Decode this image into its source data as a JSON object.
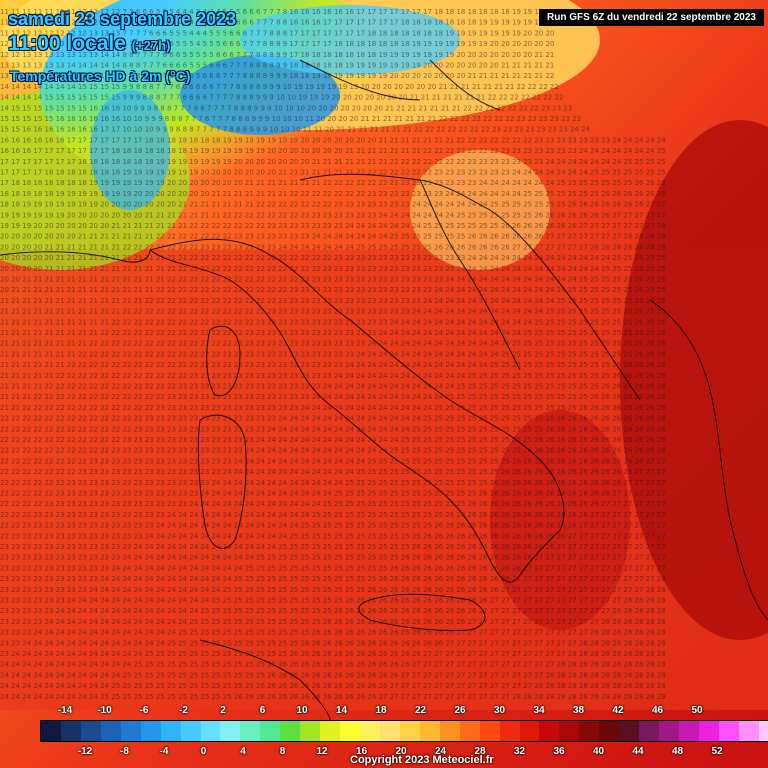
{
  "header": {
    "date_title": "samedi 23 septembre 2023",
    "time_main": "11:00 locale",
    "time_offset": "(+27h)",
    "subtitle": "Températures HD à 2m (°C)",
    "run_info": "Run GFS 6Z du vendredi 22 septembre 2023"
  },
  "copyright": "Copyright 2023 Meteociel.fr",
  "legend": {
    "top_labels": [
      "-14",
      "-10",
      "-6",
      "-2",
      "2",
      "6",
      "10",
      "14",
      "18",
      "22",
      "26",
      "30",
      "34",
      "38",
      "42",
      "46",
      "50"
    ],
    "bottom_labels": [
      "-12",
      "-8",
      "-4",
      "0",
      "4",
      "8",
      "12",
      "16",
      "20",
      "24",
      "28",
      "32",
      "36",
      "40",
      "44",
      "48",
      "52"
    ],
    "colors": [
      "#101840",
      "#16306a",
      "#1a4a90",
      "#1c62b4",
      "#1f7ad4",
      "#2496ec",
      "#30b4f8",
      "#48ccff",
      "#66e0ff",
      "#80f0f0",
      "#6af0c0",
      "#50e890",
      "#5ae040",
      "#a0e820",
      "#e0f020",
      "#ffff30",
      "#fff060",
      "#ffe070",
      "#ffd040",
      "#ffb830",
      "#ff9020",
      "#ff6a18",
      "#ff4a10",
      "#f02a10",
      "#e01808",
      "#c80808",
      "#a80808",
      "#880808",
      "#680808",
      "#581020",
      "#781860",
      "#a01888",
      "#c81ab0",
      "#ee20e0",
      "#ff50ff",
      "#ff90ff",
      "#ffc8ff",
      "#ffffff"
    ]
  }
}
